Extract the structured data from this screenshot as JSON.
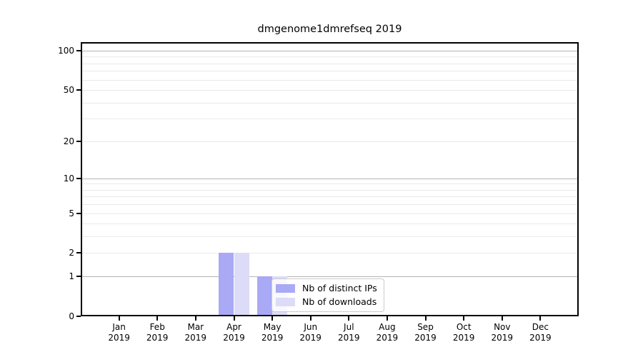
{
  "chart_data": {
    "type": "bar",
    "title": "dmgenome1dmrefseq 2019",
    "categories": [
      "Jan",
      "Feb",
      "Mar",
      "Apr",
      "May",
      "Jun",
      "Jul",
      "Aug",
      "Sep",
      "Oct",
      "Nov",
      "Dec"
    ],
    "x_year_label": "2019",
    "series": [
      {
        "name": "Nb of distinct IPs",
        "color": "#a9a9f6",
        "values": [
          0,
          0,
          0,
          2,
          1,
          0,
          0,
          0,
          0,
          0,
          0,
          0
        ]
      },
      {
        "name": "Nb of downloads",
        "color": "#dcdcf8",
        "values": [
          0,
          0,
          0,
          2,
          1,
          0,
          0,
          0,
          0,
          0,
          0,
          0
        ]
      }
    ],
    "y_scale": "log1p",
    "ylim": [
      0,
      116
    ],
    "y_tick_values": [
      0,
      1,
      2,
      5,
      10,
      20,
      50,
      100
    ],
    "y_gridlines_major": [
      1,
      10,
      100
    ],
    "y_gridlines_minor": [
      2,
      3,
      4,
      5,
      6,
      7,
      8,
      9,
      20,
      30,
      40,
      50,
      60,
      70,
      80,
      90
    ],
    "grid": "horizontal",
    "legend_position": "lower center",
    "colors": {
      "background": "#ffffff",
      "spine": "#000000",
      "grid_major": "#b4b4b4",
      "grid_minor": "#e9e9e9",
      "text": "#000000"
    }
  }
}
